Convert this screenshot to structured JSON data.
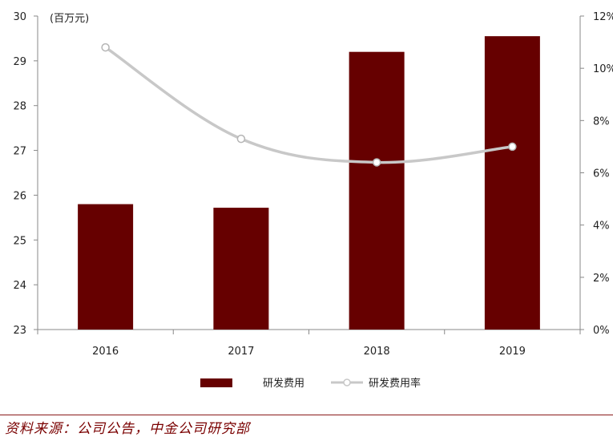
{
  "chart_data": {
    "type": "bar",
    "categories": [
      "2016",
      "2017",
      "2018",
      "2019"
    ],
    "unit_label": "(百万元)",
    "series": [
      {
        "name": "研发费用",
        "kind": "bar",
        "axis": "left",
        "color": "#660000",
        "values": [
          25.8,
          25.72,
          29.2,
          29.55
        ]
      },
      {
        "name": "研发费用率",
        "kind": "line",
        "axis": "right",
        "color": "#c8c8c8",
        "values": [
          10.8,
          7.3,
          6.4,
          7.0
        ]
      }
    ],
    "left_axis": {
      "min": 23,
      "max": 30,
      "ticks": [
        "23",
        "24",
        "25",
        "26",
        "27",
        "28",
        "29",
        "30"
      ]
    },
    "right_axis": {
      "min": 0,
      "max": 12,
      "ticks": [
        "0%",
        "2%",
        "4%",
        "6%",
        "8%",
        "10%",
        "12%"
      ]
    },
    "legend_position": "bottom"
  },
  "source_text": "资料来源：公司公告，中金公司研究部"
}
